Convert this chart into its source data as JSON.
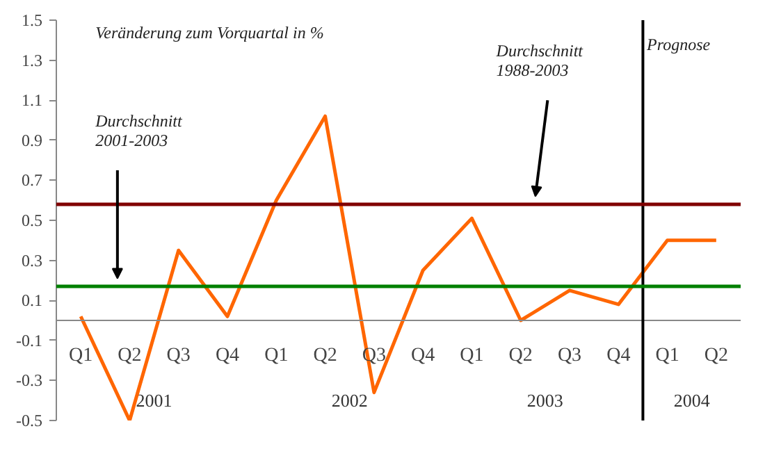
{
  "chart_data": {
    "type": "line",
    "title": "Veränderung zum Vorquartal in %",
    "categories": [
      "Q1",
      "Q2",
      "Q3",
      "Q4",
      "Q1",
      "Q2",
      "Q3",
      "Q4",
      "Q1",
      "Q2",
      "Q3",
      "Q4",
      "Q1",
      "Q2"
    ],
    "series": [
      {
        "color": "#ff6600",
        "values": [
          0.02,
          -0.5,
          0.35,
          0.02,
          0.6,
          1.02,
          -0.36,
          0.25,
          0.51,
          0.0,
          0.15,
          0.08,
          0.4,
          0.4
        ]
      }
    ],
    "ylim": [
      -0.5,
      1.5
    ],
    "yticks": [
      1.5,
      1.3,
      1.1,
      0.9,
      0.7,
      0.5,
      0.3,
      0.1,
      -0.1,
      -0.3,
      -0.5
    ],
    "ref_lines": [
      {
        "axis": "y",
        "value": 0.58,
        "label": "Durchschnitt 1988-2003",
        "color": "#800000"
      },
      {
        "axis": "y",
        "value": 0.17,
        "label": "Durchschnitt 2001-2003",
        "color": "#008000"
      }
    ],
    "annotations": [
      "2001",
      "2002",
      "2003",
      "2004",
      "Prognose"
    ],
    "grid": false,
    "marker": "none",
    "line_style": "solid"
  }
}
